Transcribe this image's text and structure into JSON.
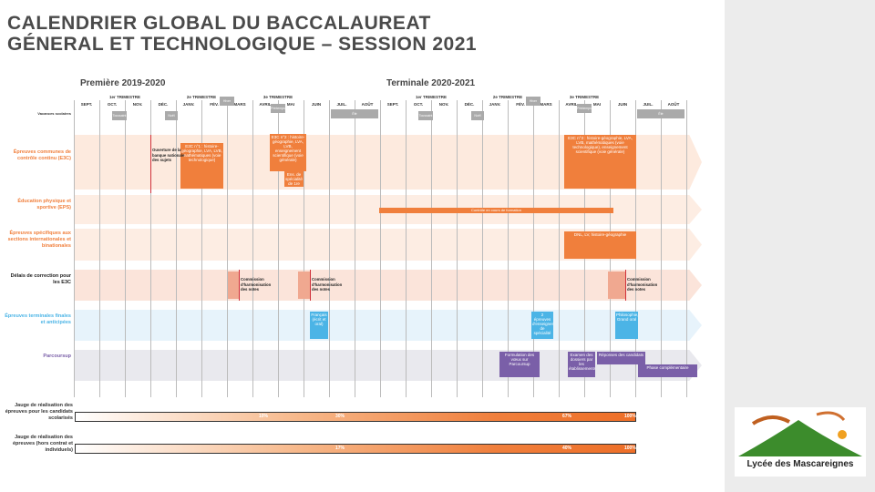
{
  "title": [
    "CALENDRIER GLOBAL DU BACCALAUREAT",
    "GÉNERAL ET TECHNOLOGIQUE – SESSION 2021"
  ],
  "years": [
    {
      "label": "Première 2019-2020",
      "months": [
        "SEPT.",
        "OCT.",
        "NOV.",
        "DÉC.",
        "JANV.",
        "FÉV.",
        "MARS",
        "AVRIL",
        "MAI",
        "JUIN",
        "JUIL.",
        "AOÛT"
      ],
      "terms": [
        "1er TRIMESTRE",
        "2e TRIMESTRE",
        "3e TRIMESTRE"
      ],
      "vacations": [
        "Toussaint",
        "Noël",
        "Hiver",
        "Printemps",
        "Été"
      ]
    },
    {
      "label": "Terminale 2020-2021",
      "months": [
        "SEPT.",
        "OCT.",
        "NOV.",
        "DÉC.",
        "JANV.",
        "FÉV.",
        "MARS",
        "AVRIL",
        "MAI",
        "JUIN",
        "JUIL.",
        "AOÛT"
      ],
      "terms": [
        "1er TRIMESTRE",
        "2e TRIMESTRE",
        "3e TRIMESTRE"
      ],
      "vacations": [
        "Toussaint",
        "Noël",
        "Hiver",
        "Printemps",
        "Été"
      ]
    }
  ],
  "vacation_label": "Vacances scolaires",
  "rows": [
    "Épreuves communes de contrôle continu (E3C)",
    "Éducation physique et sportive (EPS)",
    "Épreuves spécifiques aux sections internationales et binationales",
    "Délais de correction pour les E3C",
    "Épreuves terminales finales et anticipées",
    "Parcoursup"
  ],
  "boxes": [
    "E3C n°1 : histoire-géographie, LVA, LVB, mathématiques (voie technologique)",
    "E3C n°2 : histoire-géographie, LVA, LVB, enseignement scientifique (voie générale)",
    "Ens. de spécialité de 1re",
    "E3C n°3 : histoire-géographie, LVA, LVB, mathématiques (voie technologique), enseignement scientifique (voie générale)",
    "Contrôle en cours de formation",
    "DNL, LV, histoire-géographie",
    "Français (écrit et oral)",
    "2 épreuves d'enseignement de spécialité",
    "Philosophie, Grand oral",
    "Formulation des vœux sur Parcoursup",
    "Examen des dossiers par les établissements",
    "Réponses des candidats",
    "Phase complémentaire"
  ],
  "notes": [
    "Ouverture de la banque nationale des sujets",
    "Commission d'harmonisation des notes",
    "Commission d'harmonisation des notes",
    "Commission d'harmonisation des notes"
  ],
  "gauges": [
    {
      "label": "Jauge de réalisation des épreuves pour les candidats scolarisés",
      "marks": [
        "0%",
        "10%",
        "30%",
        "67%",
        "100%"
      ]
    },
    {
      "label": "Jauge de réalisation des épreuves (hors contrat et individuels)",
      "marks": [
        "0%",
        "17%",
        "40%",
        "100%"
      ]
    }
  ],
  "logo": "Lycée des Mascareignes"
}
